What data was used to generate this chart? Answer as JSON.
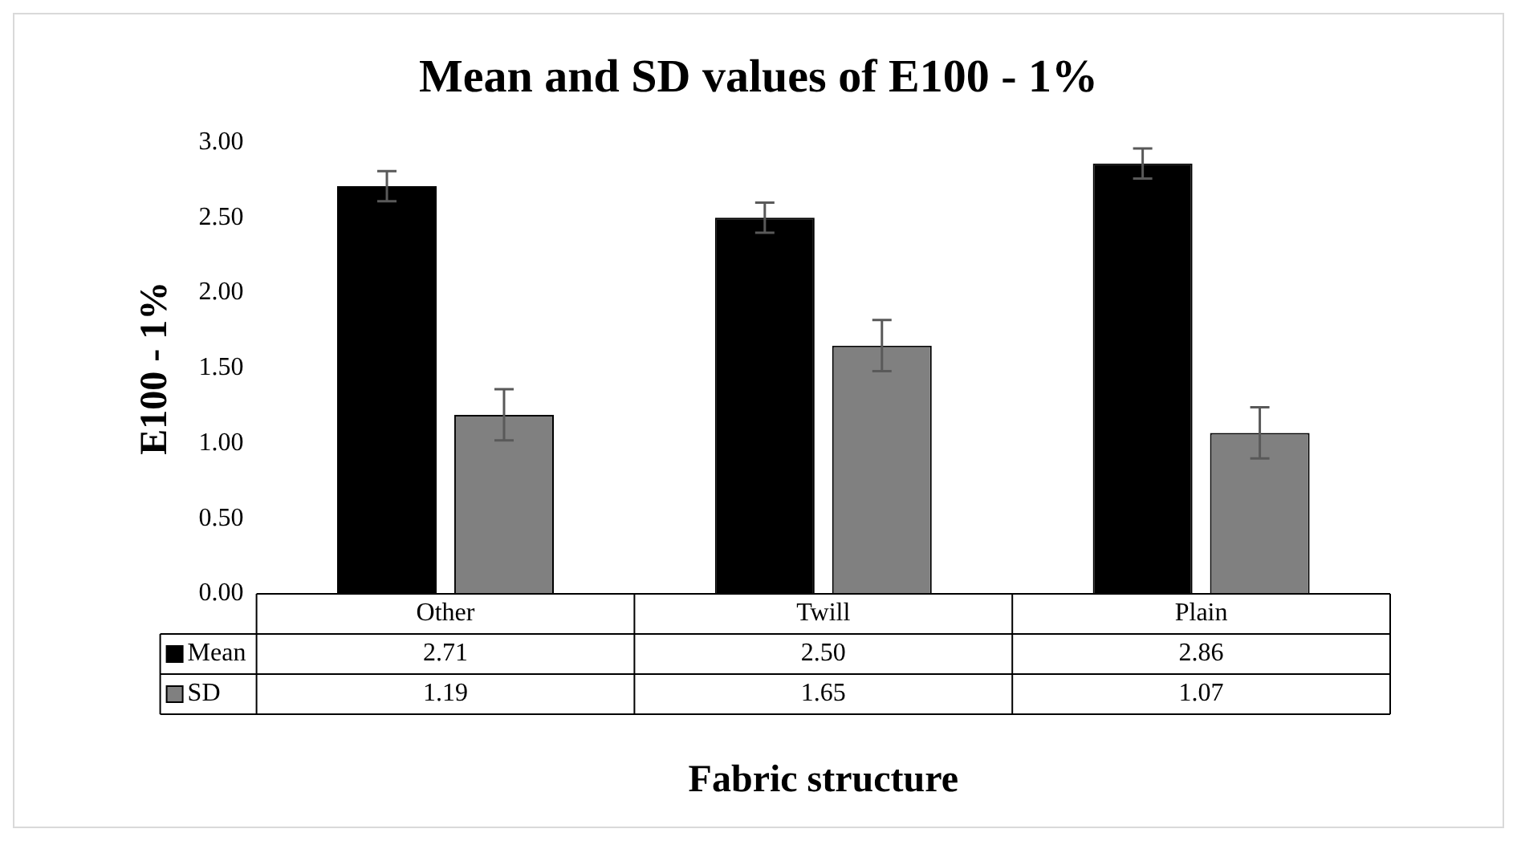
{
  "chart_data": {
    "type": "bar",
    "title": "Mean and SD values of E100 - 1%",
    "xlabel": "Fabric structure",
    "ylabel": "E100 - 1%",
    "categories": [
      "Other",
      "Twill",
      "Plain"
    ],
    "series": [
      {
        "name": "Mean",
        "color": "#000000",
        "values": [
          2.71,
          2.5,
          2.86
        ],
        "errors": [
          0.1,
          0.1,
          0.1
        ],
        "value_labels": [
          "2.71",
          "2.50",
          "2.86"
        ]
      },
      {
        "name": "SD",
        "color": "#808080",
        "values": [
          1.19,
          1.65,
          1.07
        ],
        "errors": [
          0.17,
          0.17,
          0.17
        ],
        "value_labels": [
          "1.19",
          "1.65",
          "1.07"
        ]
      }
    ],
    "ylim": [
      0,
      3
    ],
    "yticks": [
      {
        "value": 0,
        "label": "0.00"
      },
      {
        "value": 0.5,
        "label": "0.50"
      },
      {
        "value": 1,
        "label": "1.00"
      },
      {
        "value": 1.5,
        "label": "1.50"
      },
      {
        "value": 2,
        "label": "2.00"
      },
      {
        "value": 2.5,
        "label": "2.50"
      },
      {
        "value": 3,
        "label": "3.00"
      }
    ],
    "grid": false,
    "legend": "bottom"
  }
}
